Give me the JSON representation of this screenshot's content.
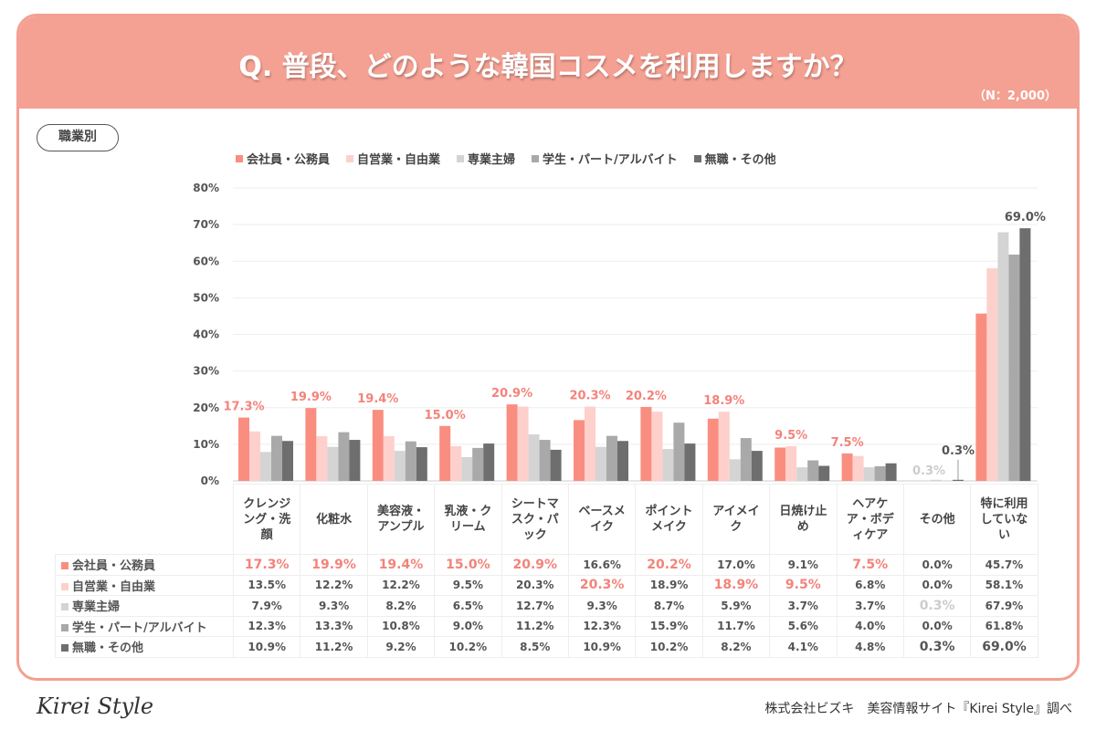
{
  "header": {
    "title": "Q. 普段、どのような韓国コスメを利用しますか？",
    "sample": "（N：2,000）"
  },
  "filter_label": "職業別",
  "colors": {
    "header": "#f4a092",
    "highlight": "#f3837a"
  },
  "chart_data": {
    "type": "bar",
    "ylim": [
      0,
      80
    ],
    "yticks": [
      "0%",
      "10%",
      "20%",
      "30%",
      "40%",
      "50%",
      "60%",
      "70%",
      "80%"
    ],
    "grid": true,
    "legend_placement": "top",
    "categories": [
      "クレンジング・洗顔",
      "化粧水",
      "美容液・アンプル",
      "乳液・クリーム",
      "シートマスク・パック",
      "ベースメイク",
      "ポイントメイク",
      "アイメイク",
      "日焼け止め",
      "ヘアケア・ボディケア",
      "その他",
      "特に利用していない"
    ],
    "series": [
      {
        "name": "会社員・公務員",
        "color": "#f98e80",
        "values": [
          17.3,
          19.9,
          19.4,
          15.0,
          20.9,
          16.6,
          20.2,
          17.0,
          9.1,
          7.5,
          0.0,
          45.7
        ]
      },
      {
        "name": "自営業・自由業",
        "color": "#fdd0cc",
        "values": [
          13.5,
          12.2,
          12.2,
          9.5,
          20.3,
          20.3,
          18.9,
          18.9,
          9.5,
          6.8,
          0.0,
          58.1
        ]
      },
      {
        "name": "専業主婦",
        "color": "#d4d4d4",
        "values": [
          7.9,
          9.3,
          8.2,
          6.5,
          12.7,
          9.3,
          8.7,
          5.9,
          3.7,
          3.7,
          0.3,
          67.9
        ]
      },
      {
        "name": "学生・パート/アルバイト",
        "color": "#a9a9a9",
        "values": [
          12.3,
          13.3,
          10.8,
          9.0,
          11.2,
          12.3,
          15.9,
          11.7,
          5.6,
          4.0,
          0.0,
          61.8
        ]
      },
      {
        "name": "無職・その他",
        "color": "#6e6e6e",
        "values": [
          10.9,
          11.2,
          9.2,
          10.2,
          8.5,
          10.9,
          10.2,
          8.2,
          4.1,
          4.8,
          0.3,
          69.0
        ]
      }
    ],
    "highlights": [
      {
        "category": 0,
        "series": 0,
        "label": "17.3%",
        "color": "#f3837a"
      },
      {
        "category": 1,
        "series": 0,
        "label": "19.9%",
        "color": "#f3837a"
      },
      {
        "category": 2,
        "series": 0,
        "label": "19.4%",
        "color": "#f3837a"
      },
      {
        "category": 3,
        "series": 0,
        "label": "15.0%",
        "color": "#f3837a"
      },
      {
        "category": 4,
        "series": 0,
        "label": "20.9%",
        "color": "#f3837a"
      },
      {
        "category": 5,
        "series": 1,
        "label": "20.3%",
        "color": "#f3837a"
      },
      {
        "category": 6,
        "series": 0,
        "label": "20.2%",
        "color": "#f3837a"
      },
      {
        "category": 7,
        "series": 1,
        "label": "18.9%",
        "color": "#f3837a"
      },
      {
        "category": 8,
        "series": 1,
        "label": "9.5%",
        "color": "#f3837a"
      },
      {
        "category": 9,
        "series": 0,
        "label": "7.5%",
        "color": "#f3837a"
      },
      {
        "category": 10,
        "series": 2,
        "label": "0.3%",
        "color": "#cccccc"
      },
      {
        "category": 10,
        "series": 4,
        "label": "0.3%",
        "color": "#555555"
      },
      {
        "category": 11,
        "series": 4,
        "label": "69.0%",
        "color": "#555555"
      }
    ]
  },
  "footer": {
    "logo": "Kirei Style",
    "source": "株式会社ビズキ　美容情報サイト『Kirei Style』調べ"
  }
}
